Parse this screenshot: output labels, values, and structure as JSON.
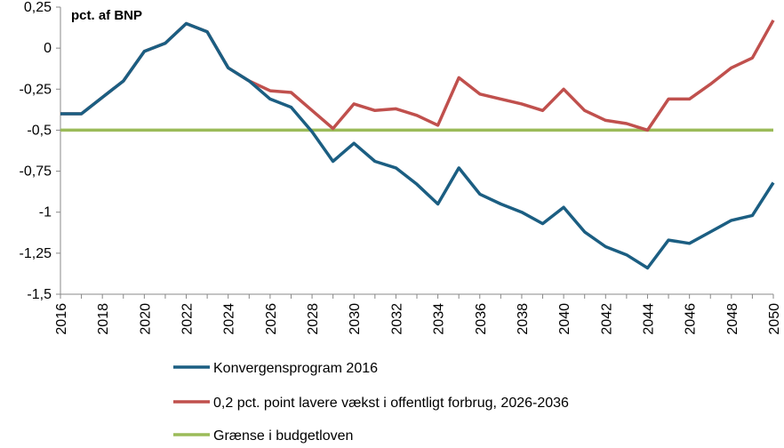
{
  "chart_data": {
    "type": "line",
    "unit_label": "pct. af BNP",
    "ylim": [
      -1.5,
      0.25
    ],
    "yticks": [
      0.25,
      0,
      -0.25,
      -0.5,
      -0.75,
      -1,
      -1.25,
      -1.5
    ],
    "ytick_labels": [
      "0,25",
      "0",
      "-0,25",
      "-0,5",
      "-0,75",
      "-1",
      "-1,25",
      "-1,5"
    ],
    "xlim": [
      2016,
      2050
    ],
    "xtick_labels": [
      "2016",
      "2018",
      "2020",
      "2022",
      "2024",
      "2026",
      "2028",
      "2030",
      "2032",
      "2034",
      "2036",
      "2038",
      "2040",
      "2042",
      "2044",
      "2046",
      "2048",
      "2050"
    ],
    "x": [
      2016,
      2017,
      2018,
      2019,
      2020,
      2021,
      2022,
      2023,
      2024,
      2025,
      2026,
      2027,
      2028,
      2029,
      2030,
      2031,
      2032,
      2033,
      2034,
      2035,
      2036,
      2037,
      2038,
      2039,
      2040,
      2041,
      2042,
      2043,
      2044,
      2045,
      2046,
      2047,
      2048,
      2049,
      2050
    ],
    "legend_position": "bottom",
    "grid": false,
    "series": [
      {
        "name": "Konvergensprogram 2016",
        "color": "#1B5E82",
        "values": [
          -0.4,
          -0.4,
          -0.3,
          -0.2,
          -0.02,
          0.03,
          0.15,
          0.1,
          -0.12,
          -0.2,
          -0.31,
          -0.36,
          -0.51,
          -0.69,
          -0.58,
          -0.69,
          -0.73,
          -0.83,
          -0.95,
          -0.73,
          -0.89,
          -0.95,
          -1.0,
          -1.07,
          -0.97,
          -1.12,
          -1.21,
          -1.26,
          -1.34,
          -1.17,
          -1.19,
          -1.12,
          -1.05,
          -1.02,
          -0.82
        ]
      },
      {
        "name": "0,2 pct. point lavere vækst i offentligt forbrug, 2026-2036",
        "color": "#C0504D",
        "values": [
          -0.4,
          -0.4,
          -0.3,
          -0.2,
          -0.02,
          0.03,
          0.15,
          0.1,
          -0.12,
          -0.2,
          -0.26,
          -0.27,
          -0.38,
          -0.49,
          -0.34,
          -0.38,
          -0.37,
          -0.41,
          -0.47,
          -0.18,
          -0.28,
          -0.31,
          -0.34,
          -0.38,
          -0.25,
          -0.38,
          -0.44,
          -0.46,
          -0.5,
          -0.31,
          -0.31,
          -0.22,
          -0.12,
          -0.06,
          0.17
        ]
      },
      {
        "name": "Grænse i budgetloven",
        "color": "#9BBB59",
        "values": [
          -0.5,
          -0.5,
          -0.5,
          -0.5,
          -0.5,
          -0.5,
          -0.5,
          -0.5,
          -0.5,
          -0.5,
          -0.5,
          -0.5,
          -0.5,
          -0.5,
          -0.5,
          -0.5,
          -0.5,
          -0.5,
          -0.5,
          -0.5,
          -0.5,
          -0.5,
          -0.5,
          -0.5,
          -0.5,
          -0.5,
          -0.5,
          -0.5,
          -0.5,
          -0.5,
          -0.5,
          -0.5,
          -0.5,
          -0.5,
          -0.5
        ]
      }
    ]
  }
}
